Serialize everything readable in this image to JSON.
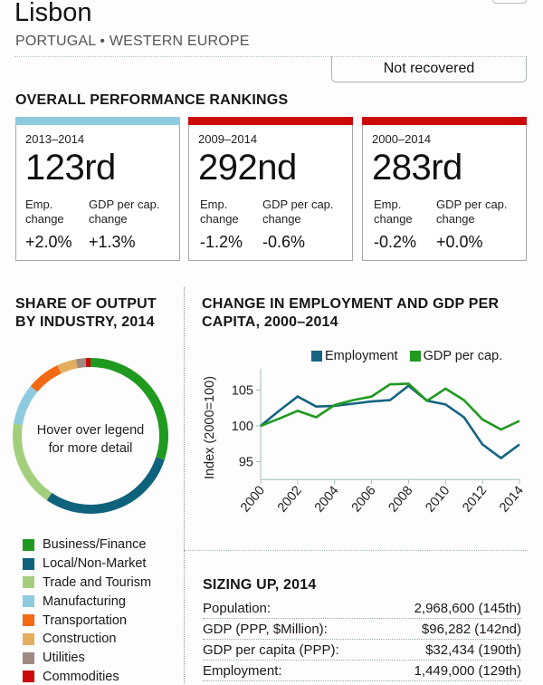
{
  "header": {
    "city": "Lisbon",
    "subtitle": "PORTUGAL • WESTERN EUROPE",
    "status": "Not recovered"
  },
  "rankings": {
    "title": "OVERALL PERFORMANCE RANKINGS",
    "emp_label": "Emp. change",
    "gdp_label": "GDP per cap. change",
    "emp_label_l1": "Emp.",
    "emp_label_l2": "change",
    "gdp_label_l1": "GDP per cap.",
    "gdp_label_l2": "change",
    "cards": [
      {
        "period": "2013–2014",
        "rank": "123rd",
        "emp": "+2.0%",
        "gdp": "+1.3%",
        "color": "#8ecae0"
      },
      {
        "period": "2009–2014",
        "rank": "292nd",
        "emp": "-1.2%",
        "gdp": "-0.6%",
        "color": "#cc0a0a"
      },
      {
        "period": "2000–2014",
        "rank": "283rd",
        "emp": "-0.2%",
        "gdp": "+0.0%",
        "color": "#cc0a0a"
      }
    ]
  },
  "share": {
    "title_l1": "SHARE OF OUTPUT",
    "title_l2": "BY INDUSTRY, 2014",
    "hint_l1": "Hover over legend",
    "hint_l2": "for more detail",
    "industries": [
      {
        "name": "Business/Finance",
        "share": 30,
        "color": "#1f9a1f"
      },
      {
        "name": "Local/Non-Market",
        "share": 29.5,
        "color": "#0f627c"
      },
      {
        "name": "Trade and Tourism",
        "share": 18,
        "color": "#a3cf7d"
      },
      {
        "name": "Manufacturing",
        "share": 8.5,
        "color": "#8ecae0"
      },
      {
        "name": "Transportation",
        "share": 7,
        "color": "#f26b14"
      },
      {
        "name": "Construction",
        "share": 4,
        "color": "#e5ad60"
      },
      {
        "name": "Utilities",
        "share": 2,
        "color": "#a08a80"
      },
      {
        "name": "Commodities",
        "share": 1,
        "color": "#cc0a0a"
      }
    ]
  },
  "chart_data": {
    "type": "line",
    "title": "CHANGE IN EMPLOYMENT AND GDP PER CAPITA, 2000–2014",
    "title_l1": "CHANGE IN EMPLOYMENT AND GDP PER",
    "title_l2": "CAPITA, 2000–2014",
    "xlabel": "",
    "ylabel": "Index (2000=100)",
    "x": [
      2000,
      2001,
      2002,
      2003,
      2004,
      2005,
      2006,
      2007,
      2008,
      2009,
      2010,
      2011,
      2012,
      2013,
      2014
    ],
    "xticks": [
      "2000",
      "2002",
      "2004",
      "2006",
      "2008",
      "2010",
      "2012",
      "2014"
    ],
    "yticks": [
      "95",
      "100",
      "105"
    ],
    "ylim": [
      92.5,
      108
    ],
    "grid": false,
    "legend_position": "top-right",
    "series": [
      {
        "name": "Employment",
        "color": "#146482",
        "values": [
          100,
          102.1,
          104.1,
          102.7,
          102.8,
          103.1,
          103.4,
          103.6,
          105.6,
          103.5,
          103.0,
          101.2,
          97.4,
          95.5,
          97.4
        ]
      },
      {
        "name": "GDP per cap.",
        "color": "#1f9a1f",
        "values": [
          100,
          101.0,
          102.1,
          101.2,
          102.9,
          103.6,
          104.1,
          105.8,
          105.9,
          103.5,
          105.2,
          103.6,
          100.9,
          99.5,
          100.7
        ]
      }
    ]
  },
  "sizing": {
    "title": "SIZING UP, 2014",
    "rows": [
      {
        "label": "Population:",
        "value": "2,968,600 (145th)"
      },
      {
        "label": "GDP (PPP, $Million):",
        "value": "$96,282 (142nd)"
      },
      {
        "label": "GDP per capita (PPP):",
        "value": "$32,434 (190th)"
      },
      {
        "label": "Employment:",
        "value": "1,449,000 (129th)"
      }
    ]
  }
}
